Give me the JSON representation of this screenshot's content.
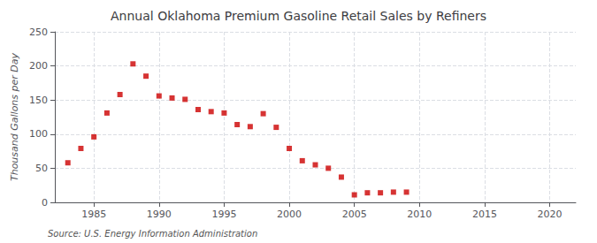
{
  "chart_data": {
    "type": "scatter",
    "title": "Annual Oklahoma Premium Gasoline Retail Sales by Refiners",
    "ylabel": "Thousand Gallons per Day",
    "annotation": "Source: U.S. Energy Information Administration",
    "x": [
      1983,
      1984,
      1985,
      1986,
      1987,
      1988,
      1989,
      1990,
      1991,
      1992,
      1993,
      1994,
      1995,
      1996,
      1997,
      1998,
      1999,
      2000,
      2001,
      2002,
      2003,
      2004,
      2005,
      2006,
      2007,
      2008,
      2009
    ],
    "values": [
      58,
      79,
      96,
      131,
      158,
      203,
      185,
      156,
      153,
      151,
      136,
      133,
      131,
      114,
      111,
      130,
      110,
      79,
      61,
      55,
      50,
      37,
      11,
      14,
      14,
      15,
      15
    ],
    "color": "#cc0000",
    "marker": "square",
    "xlim": [
      1982,
      2022
    ],
    "ylim": [
      0,
      250
    ],
    "xticks": [
      1985,
      1990,
      1995,
      2000,
      2005,
      2010,
      2015,
      2020
    ],
    "yticks": [
      0,
      50,
      100,
      150,
      200,
      250
    ],
    "grid": true
  }
}
